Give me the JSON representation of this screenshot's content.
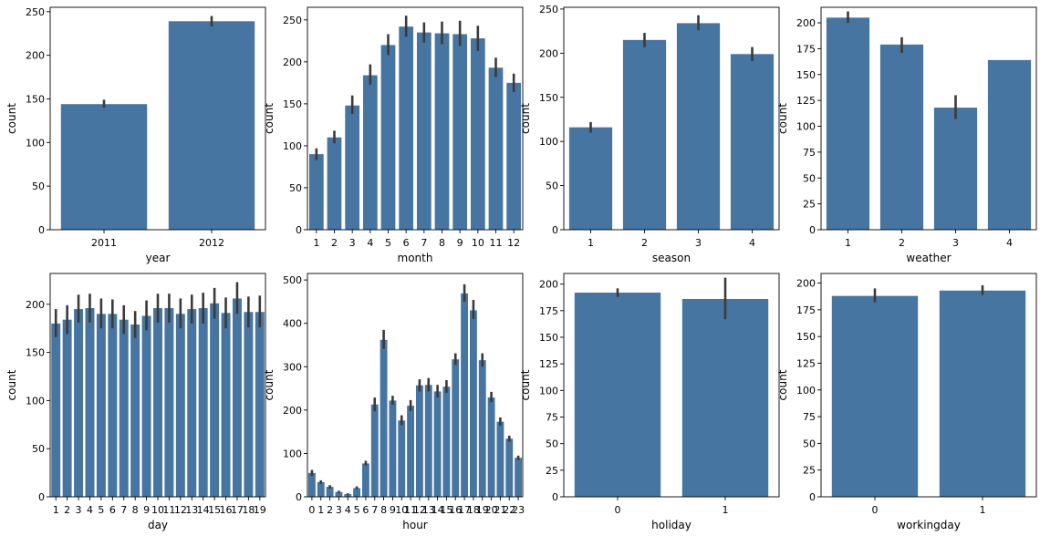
{
  "colors": {
    "bar": "#4575a0",
    "error": "#3a3a3a"
  },
  "chart_data": [
    {
      "type": "bar",
      "xlabel": "year",
      "ylabel": "count",
      "ylim": [
        0,
        255
      ],
      "yticks": [
        0,
        50,
        100,
        150,
        200,
        250
      ],
      "categories": [
        "2011",
        "2012"
      ],
      "values": [
        144,
        239
      ],
      "errors": [
        [
          140,
          149
        ],
        [
          233,
          245
        ]
      ]
    },
    {
      "type": "bar",
      "xlabel": "month",
      "ylabel": "count",
      "ylim": [
        0,
        265
      ],
      "yticks": [
        0,
        50,
        100,
        150,
        200,
        250
      ],
      "categories": [
        "1",
        "2",
        "3",
        "4",
        "5",
        "6",
        "7",
        "8",
        "9",
        "10",
        "11",
        "12"
      ],
      "values": [
        90,
        110,
        148,
        184,
        220,
        242,
        235,
        234,
        233,
        228,
        193,
        175
      ],
      "errors": [
        [
          83,
          97
        ],
        [
          103,
          118
        ],
        [
          138,
          160
        ],
        [
          173,
          197
        ],
        [
          208,
          233
        ],
        [
          230,
          255
        ],
        [
          223,
          247
        ],
        [
          221,
          248
        ],
        [
          219,
          249
        ],
        [
          213,
          243
        ],
        [
          182,
          205
        ],
        [
          164,
          186
        ]
      ]
    },
    {
      "type": "bar",
      "xlabel": "season",
      "ylabel": "count",
      "ylim": [
        0,
        252
      ],
      "yticks": [
        0,
        50,
        100,
        150,
        200,
        250
      ],
      "categories": [
        "1",
        "2",
        "3",
        "4"
      ],
      "values": [
        116,
        215,
        234,
        199
      ],
      "errors": [
        [
          110,
          122
        ],
        [
          207,
          223
        ],
        [
          226,
          243
        ],
        [
          191,
          207
        ]
      ]
    },
    {
      "type": "bar",
      "xlabel": "weather",
      "ylabel": "count",
      "ylim": [
        0,
        215
      ],
      "yticks": [
        0,
        25,
        50,
        75,
        100,
        125,
        150,
        175,
        200
      ],
      "categories": [
        "1",
        "2",
        "3",
        "4"
      ],
      "values": [
        205,
        179,
        118,
        164
      ],
      "errors": [
        [
          200,
          211
        ],
        [
          171,
          186
        ],
        [
          107,
          130
        ],
        null
      ]
    },
    {
      "type": "bar",
      "xlabel": "day",
      "ylabel": "count",
      "ylim": [
        0,
        232
      ],
      "yticks": [
        0,
        50,
        100,
        150,
        200
      ],
      "categories": [
        "1",
        "2",
        "3",
        "4",
        "5",
        "6",
        "7",
        "8",
        "9",
        "10",
        "11",
        "12",
        "13",
        "14",
        "15",
        "16",
        "17",
        "18",
        "19"
      ],
      "values": [
        180,
        184,
        195,
        196,
        190,
        190,
        184,
        179,
        188,
        196,
        196,
        190,
        195,
        196,
        201,
        191,
        206,
        192,
        192
      ],
      "errors": [
        [
          166,
          195
        ],
        [
          169,
          199
        ],
        [
          181,
          210
        ],
        [
          181,
          211
        ],
        [
          175,
          206
        ],
        [
          175,
          205
        ],
        [
          169,
          199
        ],
        [
          165,
          193
        ],
        [
          173,
          204
        ],
        [
          181,
          211
        ],
        [
          181,
          211
        ],
        [
          175,
          206
        ],
        [
          180,
          210
        ],
        [
          180,
          212
        ],
        [
          185,
          217
        ],
        [
          175,
          207
        ],
        [
          190,
          223
        ],
        [
          176,
          208
        ],
        [
          176,
          209
        ]
      ]
    },
    {
      "type": "bar",
      "xlabel": "hour",
      "ylabel": "count",
      "ylim": [
        0,
        515
      ],
      "yticks": [
        0,
        100,
        200,
        300,
        400,
        500
      ],
      "categories": [
        "0",
        "1",
        "2",
        "3",
        "4",
        "5",
        "6",
        "7",
        "8",
        "9",
        "10",
        "11",
        "12",
        "13",
        "14",
        "15",
        "16",
        "17",
        "18",
        "19",
        "20",
        "21",
        "22",
        "23"
      ],
      "values": [
        55,
        34,
        23,
        11,
        6,
        20,
        77,
        213,
        362,
        222,
        176,
        210,
        257,
        258,
        243,
        254,
        317,
        469,
        430,
        315,
        229,
        173,
        134,
        90
      ],
      "errors": [
        [
          48,
          62
        ],
        [
          30,
          38
        ],
        [
          19,
          27
        ],
        [
          9,
          14
        ],
        [
          4,
          8
        ],
        [
          17,
          24
        ],
        [
          72,
          83
        ],
        [
          197,
          229
        ],
        [
          341,
          385
        ],
        [
          212,
          233
        ],
        [
          165,
          188
        ],
        [
          198,
          223
        ],
        [
          243,
          271
        ],
        [
          243,
          274
        ],
        [
          229,
          258
        ],
        [
          240,
          269
        ],
        [
          304,
          331
        ],
        [
          450,
          490
        ],
        [
          410,
          454
        ],
        [
          300,
          331
        ],
        [
          218,
          242
        ],
        [
          164,
          183
        ],
        [
          127,
          141
        ],
        [
          85,
          95
        ]
      ]
    },
    {
      "type": "bar",
      "xlabel": "holiday",
      "ylabel": "count",
      "ylim": [
        0,
        210
      ],
      "yticks": [
        0,
        25,
        50,
        75,
        100,
        125,
        150,
        175,
        200
      ],
      "categories": [
        "0",
        "1"
      ],
      "values": [
        192,
        186
      ],
      "errors": [
        [
          188,
          196
        ],
        [
          167,
          206
        ]
      ]
    },
    {
      "type": "bar",
      "xlabel": "workingday",
      "ylabel": "count",
      "ylim": [
        0,
        209
      ],
      "yticks": [
        0,
        25,
        50,
        75,
        100,
        125,
        150,
        175,
        200
      ],
      "categories": [
        "0",
        "1"
      ],
      "values": [
        188,
        193
      ],
      "errors": [
        [
          182,
          195
        ],
        [
          189,
          198
        ]
      ]
    }
  ]
}
